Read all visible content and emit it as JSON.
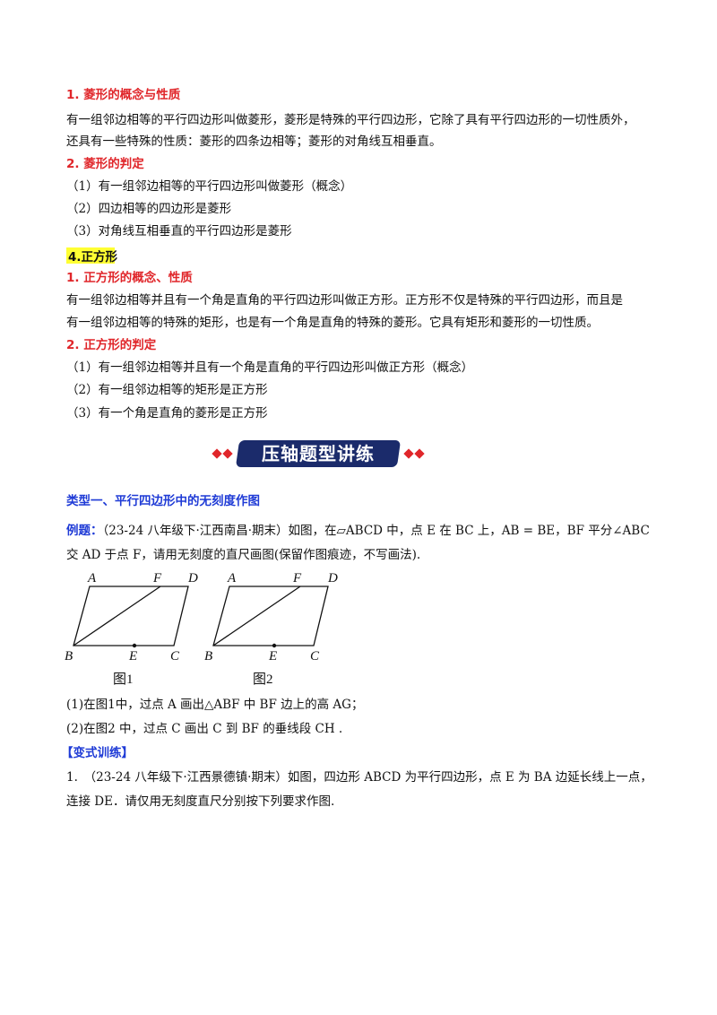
{
  "sec1": {
    "title": "1. 菱形的概念与性质",
    "p1": "有一组邻边相等的平行四边形叫做菱形，菱形是特殊的平行四边形，它除了具有平行四边形的一切性质外，",
    "p2": "还具有一些特殊的性质：菱形的四条边相等；菱形的对角线互相垂直。"
  },
  "sec2": {
    "title": "2. 菱形的判定",
    "items": [
      "（1）有一组邻边相等的平行四边形叫做菱形（概念）",
      "（2）四边相等的四边形是菱形",
      "（3）对角线互相垂直的平行四边形是菱形"
    ]
  },
  "sec4": {
    "title": "4.正方形"
  },
  "sec4_1": {
    "title": "1. 正方形的概念、性质",
    "p1": "有一组邻边相等并且有一个角是直角的平行四边形叫做正方形。正方形不仅是特殊的平行四边形，而且是",
    "p2": "有一组邻边相等的特殊的矩形，也是有一个角是直角的特殊的菱形。它具有矩形和菱形的一切性质。"
  },
  "sec4_2": {
    "title": "2. 正方形的判定",
    "items": [
      "（1）有一组邻边相等并且有一个角是直角的平行四边形叫做正方形（概念）",
      "（2）有一组邻边相等的矩形是正方形",
      "（3）有一个角是直角的菱形是正方形"
    ]
  },
  "banner": {
    "text": "压轴题型讲练"
  },
  "type1": {
    "title": "类型一、平行四边形中的无刻度作图"
  },
  "example": {
    "label": "例题：",
    "line1": "（23-24 八年级下·江西南昌·期末）如图，在▱ABCD 中，点 E 在 BC 上，AB = BE，BF 平分∠ABC",
    "line2": "交 AD 于点 F，请用无刻度的直尺画图(保留作图痕迹，不写画法)."
  },
  "figures": {
    "labels": {
      "A": "A",
      "F": "F",
      "D": "D",
      "B": "B",
      "E": "E",
      "C": "C"
    },
    "caption1": "图1",
    "caption2": "图2"
  },
  "questions": {
    "q1": "(1)在图1中，过点 A 画出△ABF 中 BF 边上的高 AG；",
    "q2": "(2)在图2 中，过点 C 画出 C 到 BF 的垂线段 CH ."
  },
  "practice": {
    "label": "【变式训练】",
    "line1": "1.　（23-24 八年级下·江西景德镇·期末）如图，四边形 ABCD 为平行四边形，点 E 为 BA 边延长线上一点，",
    "line2": "连接 DE．请仅用无刻度直尺分别按下列要求作图."
  },
  "colors": {
    "red": "#e0262a",
    "blue": "#1f3bd6",
    "banner": "#1b2b6b",
    "highlight": "#ffff33"
  }
}
